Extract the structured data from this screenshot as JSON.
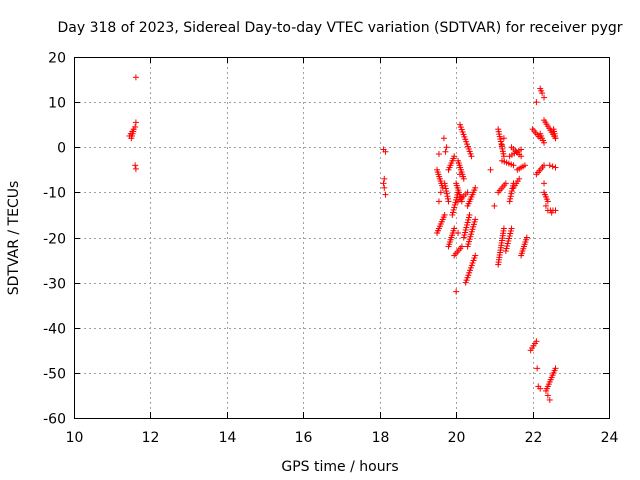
{
  "chart_data": {
    "type": "scatter",
    "title": "Day 318 of 2023, Sidereal Day-to-day VTEC variation (SDTVAR) for receiver pygr",
    "xlabel": "GPS time / hours",
    "ylabel": "SDTVAR / TECUs",
    "xlim": [
      10,
      24
    ],
    "ylim": [
      -60,
      20
    ],
    "xticks": [
      10,
      12,
      14,
      16,
      18,
      20,
      22,
      24
    ],
    "yticks": [
      -60,
      -50,
      -40,
      -30,
      -20,
      -10,
      0,
      10,
      20
    ],
    "grid": true,
    "marker": "+",
    "color": "#ff0000",
    "segments": [
      [
        11.45,
        2.5,
        11.6,
        4.5
      ],
      [
        11.5,
        2.0,
        11.55,
        3.5
      ],
      [
        19.5,
        -5,
        19.65,
        -9
      ],
      [
        19.5,
        -19,
        19.7,
        -15
      ],
      [
        19.7,
        -8,
        19.8,
        -12
      ],
      [
        19.8,
        -5,
        19.95,
        -2
      ],
      [
        19.8,
        -22,
        19.95,
        -18
      ],
      [
        19.9,
        -15,
        20.05,
        -10
      ],
      [
        19.95,
        -24,
        20.15,
        -22
      ],
      [
        20.0,
        -8,
        20.15,
        -12
      ],
      [
        20.05,
        -12,
        20.3,
        -10
      ],
      [
        20.1,
        5,
        20.4,
        -2
      ],
      [
        20.05,
        -3,
        20.2,
        -7
      ],
      [
        20.2,
        -20,
        20.35,
        -15
      ],
      [
        20.25,
        -30,
        20.5,
        -24
      ],
      [
        20.3,
        -22,
        20.5,
        -16
      ],
      [
        20.3,
        -13,
        20.5,
        -9
      ],
      [
        21.1,
        4,
        21.25,
        -2
      ],
      [
        21.1,
        -26,
        21.25,
        -18
      ],
      [
        21.1,
        -10,
        21.3,
        -8
      ],
      [
        21.2,
        -3,
        21.5,
        -4
      ],
      [
        21.3,
        -23,
        21.45,
        -18
      ],
      [
        21.4,
        -12,
        21.5,
        -8
      ],
      [
        21.5,
        -9,
        21.65,
        -7
      ],
      [
        21.4,
        -2,
        21.7,
        -0.5
      ],
      [
        21.45,
        0,
        21.7,
        -2
      ],
      [
        21.6,
        -5,
        21.8,
        -4
      ],
      [
        21.7,
        -24,
        21.85,
        -20
      ],
      [
        21.95,
        -45,
        22.1,
        -43
      ],
      [
        22.0,
        4,
        22.2,
        2
      ],
      [
        22.1,
        -6,
        22.3,
        -4
      ],
      [
        22.2,
        3,
        22.3,
        1
      ],
      [
        22.2,
        13,
        22.25,
        12
      ],
      [
        22.3,
        6,
        22.6,
        2
      ],
      [
        22.3,
        -10,
        22.4,
        -12
      ],
      [
        22.35,
        -54,
        22.6,
        -49
      ],
      [
        22.4,
        -14,
        22.6,
        -14
      ],
      [
        22.45,
        -4,
        22.6,
        -4.5
      ],
      [
        22.55,
        4,
        22.6,
        2
      ]
    ],
    "points": [
      [
        11.62,
        15.5
      ],
      [
        11.62,
        5.5
      ],
      [
        11.6,
        -4
      ],
      [
        11.62,
        -4.8
      ],
      [
        18.1,
        -0.5
      ],
      [
        18.15,
        -1
      ],
      [
        18.12,
        -7
      ],
      [
        18.1,
        -8
      ],
      [
        18.12,
        -9
      ],
      [
        18.15,
        -10.5
      ],
      [
        19.55,
        -1.5
      ],
      [
        19.55,
        -12
      ],
      [
        19.6,
        -10
      ],
      [
        19.68,
        2
      ],
      [
        19.72,
        -1
      ],
      [
        19.75,
        0
      ],
      [
        20.0,
        -32
      ],
      [
        20.05,
        -19
      ],
      [
        20.1,
        -6
      ],
      [
        21.2,
        0.5
      ],
      [
        21.25,
        2
      ],
      [
        22.1,
        10
      ],
      [
        22.12,
        -49
      ],
      [
        22.15,
        -53
      ],
      [
        22.2,
        -53.5
      ],
      [
        22.3,
        11
      ],
      [
        22.3,
        -8
      ],
      [
        22.4,
        -55
      ],
      [
        22.45,
        -56
      ],
      [
        22.5,
        -14.5
      ],
      [
        22.35,
        -13
      ],
      [
        21.0,
        -13
      ],
      [
        20.9,
        -5
      ]
    ]
  }
}
